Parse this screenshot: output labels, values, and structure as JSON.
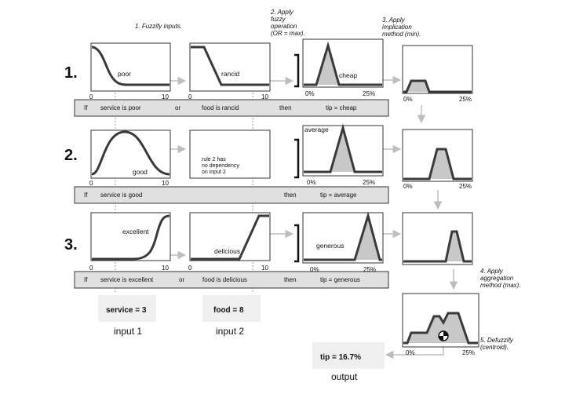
{
  "steps": {
    "s1": "1. Fuzzify inputs.",
    "s2": [
      "2. Apply",
      "fuzzy",
      "operation",
      "(OR = max)."
    ],
    "s3": [
      "3. Apply",
      "implication",
      "method (min)."
    ],
    "s4": [
      "4. Apply",
      "aggregation",
      "method (max)."
    ],
    "s5": [
      "5. Defuzzify",
      "(centroid)."
    ]
  },
  "rule_numbers": [
    "1.",
    "2.",
    "3."
  ],
  "mf_labels": {
    "poor": "poor",
    "rancid": "rancid",
    "cheap": "cheap",
    "good": "good",
    "average": "average",
    "excellent": "excellent",
    "delicious": "delicious",
    "generous": "generous"
  },
  "axis_ticks": {
    "zero": "0",
    "ten": "10",
    "zero_pct": "0%",
    "max_pct": "25%"
  },
  "no_dependency_note": [
    "rule 2 has",
    "no dependency",
    "on input 2"
  ],
  "rules": {
    "r1": {
      "if": "If",
      "cond1": "service is poor",
      "op": "or",
      "cond2": "food is rancid",
      "then": "then",
      "result": "tip = cheap"
    },
    "r2": {
      "if": "If",
      "cond1": "service is good",
      "then": "then",
      "result": "tip = average"
    },
    "r3": {
      "if": "If",
      "cond1": "service is excellent",
      "op": "or",
      "cond2": "food is delicious",
      "then": "then",
      "result": "tip = generous"
    }
  },
  "inputs": {
    "service_value": "service = 3",
    "food_value": "food = 8",
    "input1_label": "input 1",
    "input2_label": "input 2"
  },
  "output": {
    "tip_value": "tip = 16.7%",
    "label": "output"
  },
  "colors": {
    "curve": "#3a3a3a",
    "fill": "#c8c8c8",
    "rule_bar": "#e0e0e0",
    "arrow": "#bdbdbd",
    "value_box": "#efefef"
  }
}
